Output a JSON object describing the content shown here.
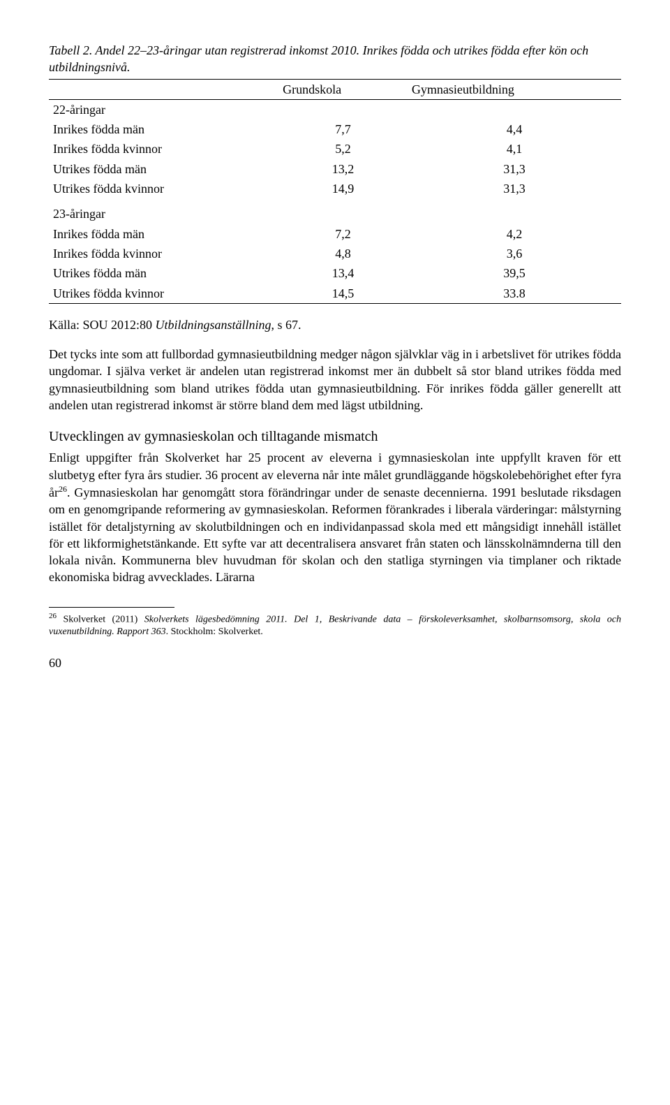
{
  "caption": "Tabell 2. Andel 22–23-åringar utan registrerad inkomst 2010. Inrikes födda och utrikes födda efter kön och utbildningsnivå.",
  "table": {
    "headers": [
      "",
      "Grundskola",
      "Gymnasieutbildning"
    ],
    "section1_label": "22-åringar",
    "section1_rows": [
      [
        "Inrikes födda män",
        "7,7",
        "4,4"
      ],
      [
        "Inrikes födda kvinnor",
        "5,2",
        "4,1"
      ],
      [
        "Utrikes födda män",
        "13,2",
        "31,3"
      ],
      [
        "Utrikes födda kvinnor",
        "14,9",
        "31,3"
      ]
    ],
    "section2_label": "23-åringar",
    "section2_rows": [
      [
        "Inrikes födda män",
        "7,2",
        "4,2"
      ],
      [
        "Inrikes födda kvinnor",
        "4,8",
        "3,6"
      ],
      [
        "Utrikes födda män",
        "13,4",
        "39,5"
      ],
      [
        "Utrikes födda kvinnor",
        "14,5",
        "33.8"
      ]
    ]
  },
  "source_prefix": "Källa: SOU 2012:80 ",
  "source_title": "Utbildningsanställning",
  "source_suffix": ", s 67.",
  "para1": "Det tycks inte som att fullbordad gymnasieutbildning medger någon självklar väg in i arbetslivet för utrikes födda ungdomar. I själva verket är andelen utan registrerad inkomst mer än dubbelt så stor bland utrikes födda med gymnasieutbildning som bland utrikes födda utan gymnasieutbildning. För inrikes födda gäller generellt att andelen utan registrerad inkomst är större bland dem med lägst utbildning.",
  "heading": "Utvecklingen av gymnasieskolan och tilltagande mismatch",
  "para2_a": "Enligt uppgifter från Skolverket har 25 procent av eleverna i gymnasieskolan inte uppfyllt kraven för ett slutbetyg efter fyra års studier. 36 procent av eleverna når inte målet grundläggande högskolebehörighet efter fyra år",
  "para2_sup": "26",
  "para2_b": ". Gymnasieskolan har genomgått stora förändringar under de senaste decennierna. 1991 beslutade riksdagen om en genomgripande reformering av gymnasieskolan. Reformen förankrades i liberala värderingar: målstyrning istället för detaljstyrning av skolutbildningen och en individanpassad skola med ett mångsidigt innehåll istället för ett likformighetstänkande. Ett syfte var att decentralisera ansvaret från staten och länsskolnämnderna till den lokala nivån. Kommunerna blev huvudman för skolan och den statliga styrningen via timplaner och riktade ekonomiska bidrag avvecklades. Lärarna",
  "footnote": {
    "num": "26",
    "a": " Skolverket (2011) ",
    "title": "Skolverkets lägesbedömning 2011. Del 1, Beskrivande data – förskoleverksamhet, skolbarnsomsorg, skola och vuxenutbildning. Rapport 363",
    "b": ". Stockholm: Skolverket."
  },
  "page": "60"
}
